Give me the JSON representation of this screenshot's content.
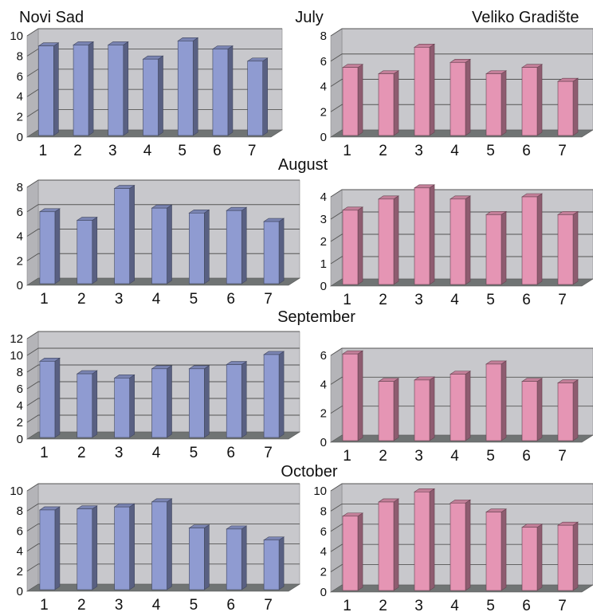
{
  "header": {
    "left_location": "Novi Sad",
    "right_location": "Veliko Gradište"
  },
  "colors": {
    "novi_sad": "#8f9bd1",
    "veliko_gradiste": "#e595b4",
    "plot_wall": "#c8c8cc",
    "plot_floor": "#707474",
    "gridline": "#555555"
  },
  "chart_data": [
    {
      "type": "bar",
      "month": "July",
      "location": "Novi Sad",
      "categories": [
        "1",
        "2",
        "3",
        "4",
        "5",
        "6",
        "7"
      ],
      "values": [
        9.0,
        9.1,
        9.1,
        7.7,
        9.5,
        8.7,
        7.5
      ],
      "ylim": [
        0,
        10
      ],
      "yticks": [
        0,
        2,
        4,
        6,
        8,
        10
      ],
      "grid": true
    },
    {
      "type": "bar",
      "month": "July",
      "location": "Veliko Gradište",
      "categories": [
        "1",
        "2",
        "3",
        "4",
        "5",
        "6",
        "7"
      ],
      "values": [
        5.5,
        5.0,
        7.1,
        5.9,
        5.0,
        5.5,
        4.4
      ],
      "ylim": [
        0,
        8
      ],
      "yticks": [
        0,
        2,
        4,
        6,
        8
      ],
      "grid": true
    },
    {
      "type": "bar",
      "month": "August",
      "location": "Novi Sad",
      "categories": [
        "1",
        "2",
        "3",
        "4",
        "5",
        "6",
        "7"
      ],
      "values": [
        6.0,
        5.3,
        7.9,
        6.3,
        5.9,
        6.1,
        5.2
      ],
      "ylim": [
        0,
        8
      ],
      "yticks": [
        0,
        2,
        4,
        6,
        8
      ],
      "grid": true
    },
    {
      "type": "bar",
      "month": "August",
      "location": "Veliko Gradište",
      "categories": [
        "1",
        "2",
        "3",
        "4",
        "5",
        "6",
        "7"
      ],
      "values": [
        3.4,
        3.9,
        4.4,
        3.9,
        3.2,
        4.0,
        3.2
      ],
      "ylim": [
        0,
        4
      ],
      "yticks": [
        0,
        1,
        2,
        3,
        4
      ],
      "grid": true
    },
    {
      "type": "bar",
      "month": "September",
      "location": "Novi Sad",
      "categories": [
        "1",
        "2",
        "3",
        "4",
        "5",
        "6",
        "7"
      ],
      "values": [
        9.3,
        7.8,
        7.3,
        8.4,
        8.4,
        8.9,
        10.1
      ],
      "ylim": [
        0,
        12
      ],
      "yticks": [
        0,
        2,
        4,
        6,
        8,
        10,
        12
      ],
      "grid": true
    },
    {
      "type": "bar",
      "month": "September",
      "location": "Veliko Gradište",
      "categories": [
        "1",
        "2",
        "3",
        "4",
        "5",
        "6",
        "7"
      ],
      "values": [
        6.1,
        4.2,
        4.3,
        4.7,
        5.4,
        4.2,
        4.1
      ],
      "ylim": [
        0,
        6
      ],
      "yticks": [
        0,
        2,
        4,
        6
      ],
      "grid": true
    },
    {
      "type": "bar",
      "month": "October",
      "location": "Novi Sad",
      "categories": [
        "1",
        "2",
        "3",
        "4",
        "5",
        "6",
        "7"
      ],
      "values": [
        8.1,
        8.2,
        8.4,
        8.9,
        6.3,
        6.2,
        5.1
      ],
      "ylim": [
        0,
        10
      ],
      "yticks": [
        0,
        2,
        4,
        6,
        8,
        10
      ],
      "grid": true
    },
    {
      "type": "bar",
      "month": "October",
      "location": "Veliko Gradište",
      "categories": [
        "1",
        "2",
        "3",
        "4",
        "5",
        "6",
        "7"
      ],
      "values": [
        7.5,
        8.9,
        9.9,
        8.8,
        7.9,
        6.4,
        6.6
      ],
      "ylim": [
        0,
        10
      ],
      "yticks": [
        0,
        2,
        4,
        6,
        8,
        10
      ],
      "grid": true
    }
  ]
}
